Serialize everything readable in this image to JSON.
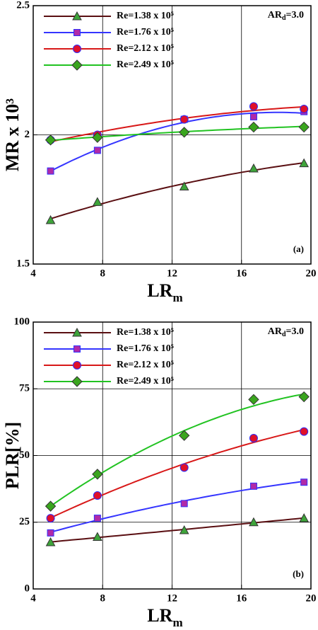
{
  "chart_data": [
    {
      "type": "line",
      "panel_label": "(a)",
      "annotation": {
        "text": "AR",
        "subscript": "d",
        "suffix": "=3.0"
      },
      "xlabel": {
        "text": "LR",
        "subscript": "m"
      },
      "ylabel": "MR x 10³",
      "x": [
        5,
        7.7,
        12.7,
        16.7,
        19.6
      ],
      "xlim": [
        4,
        20
      ],
      "xticks": [
        4,
        8,
        12,
        16,
        20
      ],
      "ylim": [
        1.5,
        2.5
      ],
      "yticks": [
        1.5,
        2,
        2.5
      ],
      "grid": true,
      "legend": "upper-left",
      "series": [
        {
          "name": "Re=1.38 x 10⁵",
          "color": "#5a0f12",
          "marker": "triangle",
          "marker_color": "#3ea43a",
          "values": [
            1.67,
            1.74,
            1.8,
            1.87,
            1.89
          ]
        },
        {
          "name": "Re=1.76 x 10⁵",
          "color": "#3535ff",
          "marker": "square",
          "marker_color": "#b02aa8",
          "values": [
            1.86,
            1.94,
            2.06,
            2.07,
            2.09
          ]
        },
        {
          "name": "Re=2.12 x 10⁵",
          "color": "#d81818",
          "marker": "circle",
          "marker_color": "#e0102a",
          "values": [
            1.98,
            2.0,
            2.06,
            2.11,
            2.1
          ]
        },
        {
          "name": "Re=2.49 x 10⁵",
          "color": "#22c322",
          "marker": "diamond",
          "marker_color": "#3aa51e",
          "values": [
            1.98,
            1.99,
            2.01,
            2.03,
            2.03
          ]
        }
      ]
    },
    {
      "type": "line",
      "panel_label": "(b)",
      "annotation": {
        "text": "AR",
        "subscript": "d",
        "suffix": "=3.0"
      },
      "xlabel": {
        "text": "LR",
        "subscript": "m"
      },
      "ylabel": "PLR[%]",
      "x": [
        5,
        7.7,
        12.7,
        16.7,
        19.6
      ],
      "xlim": [
        4,
        20
      ],
      "xticks": [
        4,
        8,
        12,
        16,
        20
      ],
      "ylim": [
        0,
        100
      ],
      "yticks": [
        0,
        25,
        50,
        75,
        100
      ],
      "grid": true,
      "legend": "upper-left",
      "series": [
        {
          "name": "Re=1.38 x 10⁵",
          "color": "#5a0f12",
          "marker": "triangle",
          "marker_color": "#3ea43a",
          "values": [
            17.5,
            19.5,
            22,
            25,
            26.5
          ]
        },
        {
          "name": "Re=1.76 x 10⁵",
          "color": "#3535ff",
          "marker": "square",
          "marker_color": "#b02aa8",
          "values": [
            21,
            26.5,
            32,
            38.5,
            40
          ]
        },
        {
          "name": "Re=2.12 x 10⁵",
          "color": "#d81818",
          "marker": "circle",
          "marker_color": "#e0102a",
          "values": [
            26.5,
            35,
            45.5,
            56.5,
            59
          ]
        },
        {
          "name": "Re=2.49 x 10⁵",
          "color": "#22c322",
          "marker": "diamond",
          "marker_color": "#3aa51e",
          "values": [
            31,
            43,
            57.5,
            71,
            72
          ]
        }
      ]
    }
  ]
}
